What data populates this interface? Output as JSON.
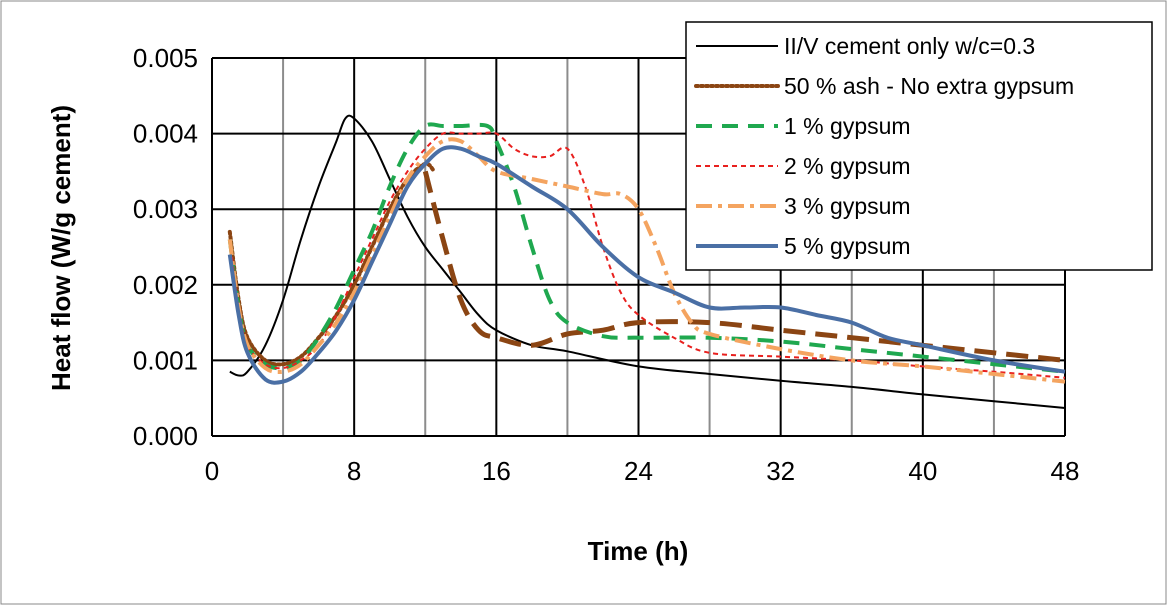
{
  "chart_data": {
    "type": "line",
    "title": "",
    "xlabel": "Time (h)",
    "ylabel": "Heat flow (W/g cement)",
    "xlim": [
      0,
      48
    ],
    "ylim": [
      0,
      0.005
    ],
    "xticks": [
      0,
      8,
      16,
      24,
      32,
      40,
      48
    ],
    "yticks": [
      0.0,
      0.001,
      0.002,
      0.003,
      0.004,
      0.005
    ],
    "x_tick_labels": [
      "0",
      "8",
      "16",
      "24",
      "32",
      "40",
      "48"
    ],
    "y_tick_labels": [
      "0.000",
      "0.001",
      "0.002",
      "0.003",
      "0.004",
      "0.005"
    ],
    "x_minor_gridlines": [
      4,
      12,
      20,
      28,
      36,
      44
    ],
    "grid": true,
    "legend_position": "top-right",
    "series": [
      {
        "name": "II/V cement only w/c=0.3",
        "color": "#000000",
        "style": "solid",
        "points": [
          [
            1,
            0.00085
          ],
          [
            1.5,
            0.0008
          ],
          [
            2,
            0.00085
          ],
          [
            3,
            0.0012
          ],
          [
            4,
            0.0018
          ],
          [
            5,
            0.0026
          ],
          [
            6,
            0.0033
          ],
          [
            7,
            0.0039
          ],
          [
            7.5,
            0.0042
          ],
          [
            8,
            0.0042
          ],
          [
            9,
            0.0039
          ],
          [
            10,
            0.0034
          ],
          [
            11,
            0.0029
          ],
          [
            12,
            0.0025
          ],
          [
            13,
            0.0022
          ],
          [
            14,
            0.0019
          ],
          [
            15,
            0.0016
          ],
          [
            16,
            0.0014
          ],
          [
            18,
            0.0012
          ],
          [
            20,
            0.00112
          ],
          [
            24,
            0.00092
          ],
          [
            28,
            0.00082
          ],
          [
            32,
            0.00073
          ],
          [
            36,
            0.00065
          ],
          [
            40,
            0.00055
          ],
          [
            44,
            0.00046
          ],
          [
            48,
            0.00037
          ]
        ]
      },
      {
        "name": "50 % ash - No extra gypsum",
        "color": "#8B4513",
        "style": "dotted",
        "points": [
          [
            1,
            0.0027
          ],
          [
            1.5,
            0.0018
          ],
          [
            2,
            0.0013
          ],
          [
            3,
            0.001
          ],
          [
            4,
            0.00095
          ],
          [
            5,
            0.00105
          ],
          [
            6,
            0.0013
          ],
          [
            7,
            0.0016
          ],
          [
            8,
            0.002
          ],
          [
            9,
            0.0025
          ],
          [
            10,
            0.003
          ],
          [
            11,
            0.0034
          ],
          [
            12,
            0.0036
          ],
          [
            12.5,
            0.0035
          ]
        ]
      },
      {
        "name": "50 % ash - No extra gypsum (continuation)",
        "color": "#8B4513",
        "style": "dash-thick",
        "points": [
          [
            12,
            0.0035
          ],
          [
            13,
            0.0026
          ],
          [
            14,
            0.0018
          ],
          [
            15,
            0.0014
          ],
          [
            16,
            0.0013
          ],
          [
            18,
            0.0012
          ],
          [
            20,
            0.00135
          ],
          [
            22,
            0.0014
          ],
          [
            24,
            0.0015
          ],
          [
            28,
            0.0015
          ],
          [
            32,
            0.0014
          ],
          [
            36,
            0.0013
          ],
          [
            40,
            0.0012
          ],
          [
            44,
            0.0011
          ],
          [
            48,
            0.001
          ]
        ]
      },
      {
        "name": "1 % gypsum",
        "color": "#1FA84F",
        "style": "dashed",
        "points": [
          [
            1,
            0.0026
          ],
          [
            1.5,
            0.0017
          ],
          [
            2,
            0.0012
          ],
          [
            3,
            0.00095
          ],
          [
            4,
            0.0009
          ],
          [
            5,
            0.001
          ],
          [
            6,
            0.0013
          ],
          [
            7,
            0.0017
          ],
          [
            8,
            0.0022
          ],
          [
            9,
            0.0027
          ],
          [
            10,
            0.0033
          ],
          [
            11,
            0.0038
          ],
          [
            12,
            0.0041
          ],
          [
            13,
            0.0041
          ],
          [
            14,
            0.0041
          ],
          [
            15.5,
            0.0041
          ],
          [
            16,
            0.0039
          ],
          [
            17,
            0.0033
          ],
          [
            18,
            0.0025
          ],
          [
            19,
            0.0018
          ],
          [
            20,
            0.0015
          ],
          [
            22,
            0.00132
          ],
          [
            24,
            0.0013
          ],
          [
            28,
            0.0013
          ],
          [
            32,
            0.00125
          ],
          [
            36,
            0.00115
          ],
          [
            40,
            0.00105
          ],
          [
            44,
            0.00095
          ],
          [
            48,
            0.00085
          ]
        ]
      },
      {
        "name": "2 % gypsum",
        "color": "#E8201E",
        "style": "short-dash",
        "points": [
          [
            1,
            0.0026
          ],
          [
            1.5,
            0.0017
          ],
          [
            2,
            0.0012
          ],
          [
            3,
            0.00095
          ],
          [
            4,
            0.0009
          ],
          [
            5,
            0.001
          ],
          [
            6,
            0.0012
          ],
          [
            7,
            0.0016
          ],
          [
            8,
            0.0021
          ],
          [
            9,
            0.0026
          ],
          [
            10,
            0.0031
          ],
          [
            11,
            0.0035
          ],
          [
            12,
            0.0038
          ],
          [
            13,
            0.004
          ],
          [
            14,
            0.004
          ],
          [
            15,
            0.004
          ],
          [
            16,
            0.004
          ],
          [
            17,
            0.0038
          ],
          [
            18,
            0.0037
          ],
          [
            19,
            0.0037
          ],
          [
            20,
            0.0038
          ],
          [
            21,
            0.0033
          ],
          [
            22,
            0.0025
          ],
          [
            23,
            0.0019
          ],
          [
            24,
            0.0016
          ],
          [
            26,
            0.0013
          ],
          [
            28,
            0.0011
          ],
          [
            32,
            0.00105
          ],
          [
            36,
            0.001
          ],
          [
            40,
            0.00092
          ],
          [
            44,
            0.00085
          ],
          [
            48,
            0.00077
          ]
        ]
      },
      {
        "name": "3 % gypsum",
        "color": "#F4A460",
        "style": "dash-dot",
        "points": [
          [
            1,
            0.0026
          ],
          [
            1.5,
            0.0017
          ],
          [
            2,
            0.0012
          ],
          [
            3,
            0.0009
          ],
          [
            4,
            0.00085
          ],
          [
            5,
            0.00095
          ],
          [
            6,
            0.0012
          ],
          [
            7,
            0.0015
          ],
          [
            8,
            0.0019
          ],
          [
            9,
            0.0024
          ],
          [
            10,
            0.0029
          ],
          [
            11,
            0.0034
          ],
          [
            12,
            0.0037
          ],
          [
            13,
            0.0039
          ],
          [
            14,
            0.0039
          ],
          [
            15,
            0.0037
          ],
          [
            16,
            0.0035
          ],
          [
            18,
            0.0034
          ],
          [
            20,
            0.0033
          ],
          [
            22,
            0.0032
          ],
          [
            23,
            0.0032
          ],
          [
            24,
            0.003
          ],
          [
            25,
            0.0025
          ],
          [
            26,
            0.0019
          ],
          [
            27,
            0.0015
          ],
          [
            28,
            0.00135
          ],
          [
            32,
            0.00115
          ],
          [
            36,
            0.001
          ],
          [
            40,
            0.00092
          ],
          [
            44,
            0.00082
          ],
          [
            48,
            0.00072
          ]
        ]
      },
      {
        "name": "5 % gypsum",
        "color": "#4A6FA5",
        "style": "solid-thick",
        "points": [
          [
            1,
            0.0024
          ],
          [
            1.5,
            0.0016
          ],
          [
            2,
            0.0011
          ],
          [
            3,
            0.00075
          ],
          [
            4,
            0.00072
          ],
          [
            5,
            0.00085
          ],
          [
            6,
            0.0011
          ],
          [
            7,
            0.0014
          ],
          [
            8,
            0.0018
          ],
          [
            9,
            0.0023
          ],
          [
            10,
            0.0028
          ],
          [
            11,
            0.0033
          ],
          [
            12,
            0.0036
          ],
          [
            13,
            0.0038
          ],
          [
            14,
            0.0038
          ],
          [
            15,
            0.0037
          ],
          [
            16,
            0.0036
          ],
          [
            18,
            0.0033
          ],
          [
            20,
            0.003
          ],
          [
            22,
            0.0025
          ],
          [
            24,
            0.0021
          ],
          [
            26,
            0.0019
          ],
          [
            28,
            0.0017
          ],
          [
            30,
            0.0017
          ],
          [
            32,
            0.0017
          ],
          [
            34,
            0.0016
          ],
          [
            36,
            0.0015
          ],
          [
            38,
            0.0013
          ],
          [
            40,
            0.0012
          ],
          [
            44,
            0.001
          ],
          [
            48,
            0.00085
          ]
        ]
      }
    ],
    "legend": [
      {
        "label": "II/V cement only w/c=0.3",
        "color": "#000000",
        "style": "solid"
      },
      {
        "label": "50 % ash - No extra gypsum",
        "color": "#8B4513",
        "style": "dotted"
      },
      {
        "label": "1 % gypsum",
        "color": "#1FA84F",
        "style": "dashed"
      },
      {
        "label": "2 % gypsum",
        "color": "#E8201E",
        "style": "short-dash"
      },
      {
        "label": "3 % gypsum",
        "color": "#F4A460",
        "style": "dash-dot"
      },
      {
        "label": "5 % gypsum",
        "color": "#4A6FA5",
        "style": "solid-thick"
      }
    ]
  }
}
